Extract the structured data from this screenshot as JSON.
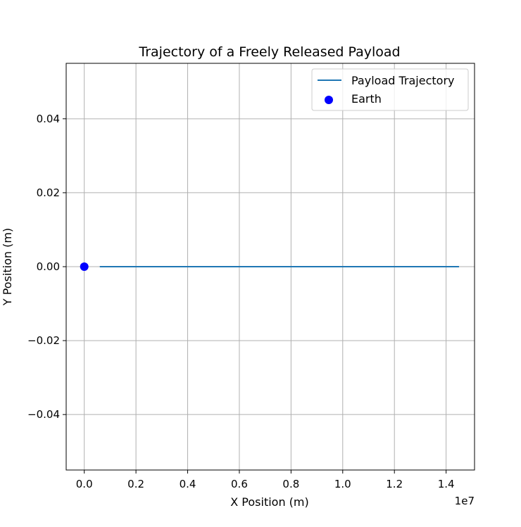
{
  "chart_data": {
    "type": "line",
    "title": "Trajectory of a Freely Released Payload",
    "xlabel": "X Position (m)",
    "ylabel": "Y Position (m)",
    "x_offset_label": "1e7",
    "xlim": [
      -0.07,
      1.51
    ],
    "ylim": [
      -0.055,
      0.055
    ],
    "x_ticks": [
      0.0,
      0.2,
      0.4,
      0.6,
      0.8,
      1.0,
      1.2,
      1.4
    ],
    "x_tick_labels": [
      "0.0",
      "0.2",
      "0.4",
      "0.6",
      "0.8",
      "1.0",
      "1.2",
      "1.4"
    ],
    "y_ticks": [
      0.04,
      0.02,
      0.0,
      -0.02,
      -0.04
    ],
    "y_tick_labels": [
      "0.04",
      "0.02",
      "0.00",
      "−0.02",
      "−0.04"
    ],
    "grid": true,
    "legend_position": "top-right",
    "series": [
      {
        "name": "Payload Trajectory",
        "kind": "line",
        "color": "#1f77b4",
        "x": [
          0.06,
          1.45
        ],
        "y": [
          0.0,
          0.0
        ]
      },
      {
        "name": "Earth",
        "kind": "scatter",
        "color": "#0000ff",
        "x": [
          0.0
        ],
        "y": [
          0.0
        ]
      }
    ]
  }
}
